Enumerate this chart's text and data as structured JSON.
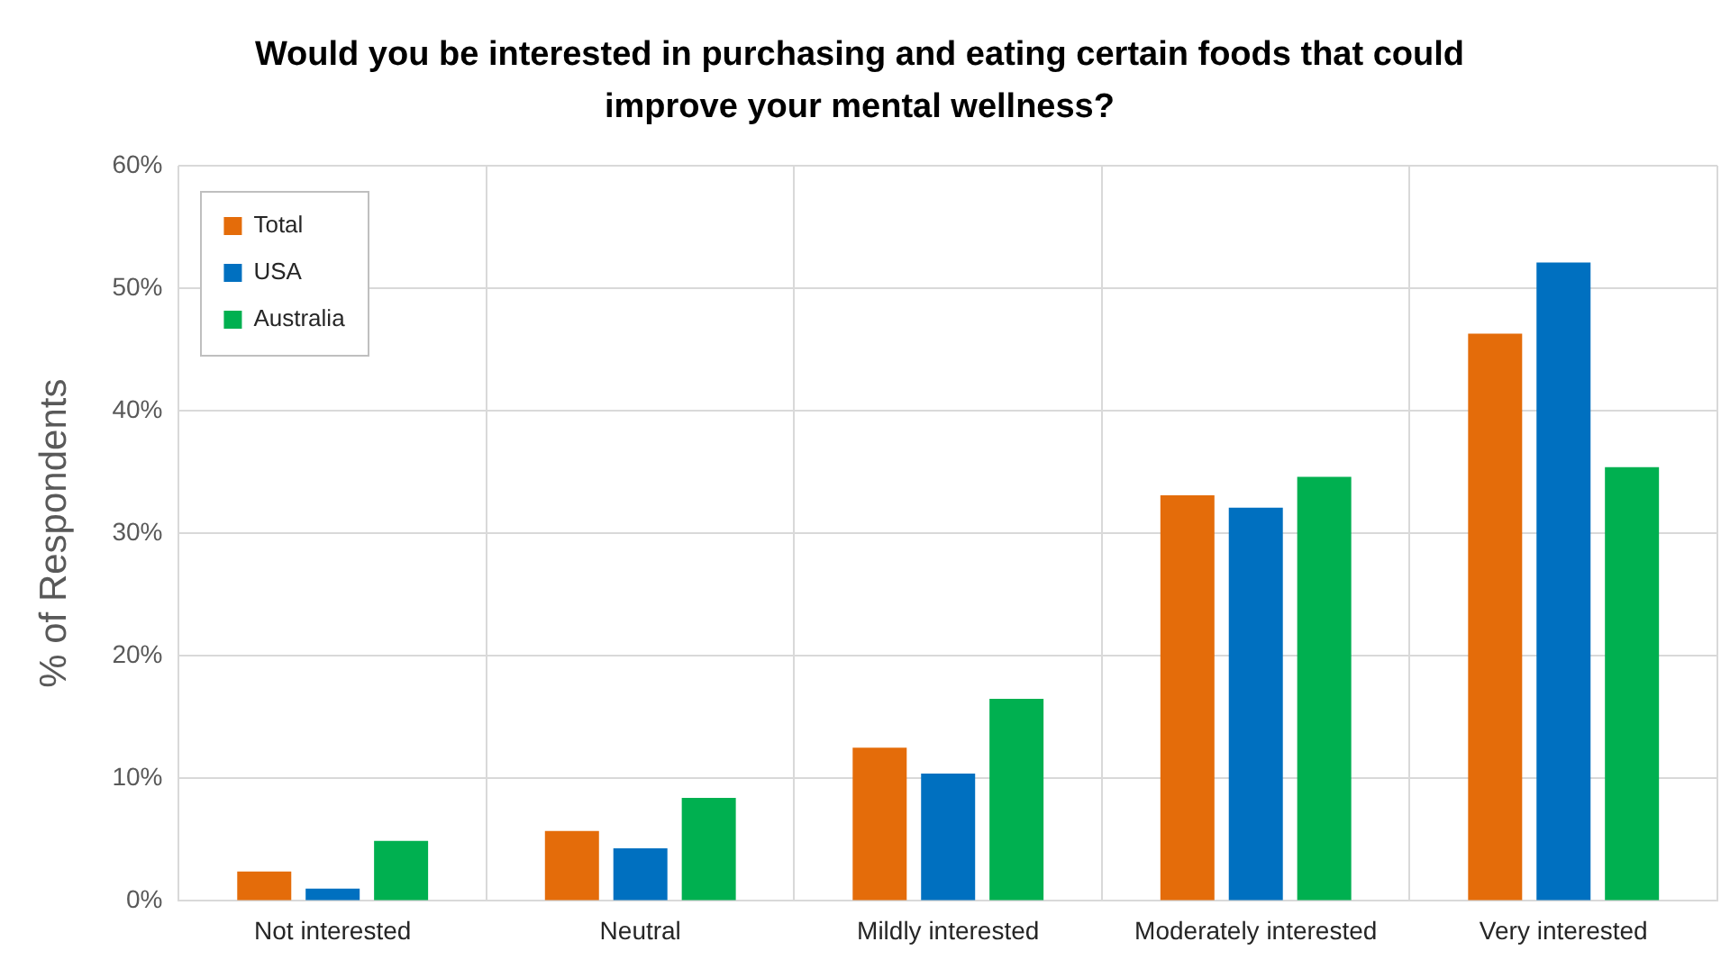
{
  "chart_data": {
    "type": "bar",
    "title": "Would you be interested in purchasing and eating certain foods that could improve your mental wellness?",
    "ylabel": "% of Respondents",
    "categories": [
      "Not interested",
      "Neutral",
      "Mildly interested",
      "Moderately interested",
      "Very interested"
    ],
    "series": [
      {
        "name": "Total",
        "color": "#e46c0a",
        "values": [
          2.4,
          5.7,
          12.5,
          33.1,
          46.3
        ]
      },
      {
        "name": "USA",
        "color": "#0070c0",
        "values": [
          1.0,
          4.3,
          10.4,
          32.1,
          52.1
        ]
      },
      {
        "name": "Australia",
        "color": "#00b050",
        "values": [
          4.9,
          8.4,
          16.5,
          34.6,
          35.4
        ]
      }
    ],
    "ylim": [
      0,
      60
    ],
    "yticks": [
      {
        "value": 0,
        "label": "0%"
      },
      {
        "value": 10,
        "label": "10%"
      },
      {
        "value": 20,
        "label": "20%"
      },
      {
        "value": 30,
        "label": "30%"
      },
      {
        "value": 40,
        "label": "40%"
      },
      {
        "value": 50,
        "label": "50%"
      },
      {
        "value": 60,
        "label": "60%"
      }
    ],
    "grid": true,
    "legend": "top left"
  }
}
